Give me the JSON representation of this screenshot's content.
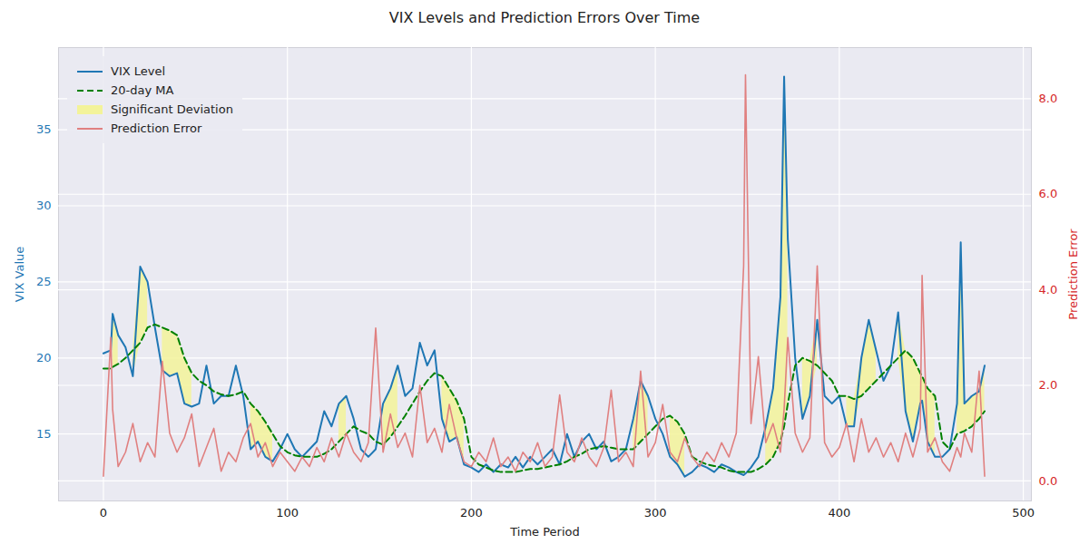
{
  "chart_data": {
    "type": "line",
    "title": "VIX Levels and Prediction Errors Over Time",
    "x_label": "Time Period",
    "y_label": "VIX Value",
    "y2_label": "Prediction Error",
    "x": [
      0,
      4,
      5,
      8,
      12,
      16,
      20,
      24,
      28,
      32,
      36,
      40,
      44,
      48,
      52,
      56,
      60,
      64,
      68,
      72,
      76,
      80,
      84,
      88,
      92,
      96,
      100,
      104,
      108,
      112,
      116,
      120,
      124,
      128,
      132,
      136,
      140,
      144,
      148,
      152,
      156,
      160,
      164,
      168,
      172,
      176,
      180,
      184,
      188,
      192,
      196,
      200,
      204,
      208,
      212,
      216,
      220,
      224,
      228,
      232,
      236,
      240,
      244,
      248,
      252,
      256,
      260,
      264,
      268,
      272,
      276,
      280,
      284,
      288,
      292,
      296,
      300,
      304,
      308,
      312,
      316,
      320,
      324,
      328,
      332,
      336,
      340,
      344,
      348,
      349,
      352,
      356,
      360,
      364,
      368,
      370,
      372,
      376,
      380,
      384,
      388,
      392,
      396,
      400,
      404,
      408,
      412,
      416,
      420,
      424,
      428,
      432,
      436,
      440,
      444,
      445,
      448,
      452,
      456,
      460,
      464,
      466,
      468,
      472,
      476,
      479
    ],
    "series": [
      {
        "name": "VIX Level",
        "color": "#1f77b4",
        "line_style": "solid",
        "values": [
          20.3,
          20.5,
          22.9,
          21.5,
          20.7,
          18.8,
          26.0,
          25.0,
          22.0,
          19.2,
          18.8,
          19.0,
          17.0,
          16.8,
          17.0,
          19.5,
          17.0,
          17.5,
          17.5,
          19.5,
          17.5,
          14.0,
          14.5,
          13.5,
          13.2,
          14.0,
          15.0,
          14.0,
          13.5,
          14.0,
          14.5,
          16.5,
          15.5,
          17.0,
          17.5,
          16.0,
          14.0,
          13.5,
          14.0,
          17.0,
          18.0,
          19.5,
          17.5,
          18.0,
          21.0,
          19.5,
          20.5,
          16.0,
          14.5,
          14.8,
          13.0,
          12.8,
          12.5,
          13.0,
          12.5,
          13.0,
          12.8,
          13.5,
          12.8,
          13.5,
          13.0,
          13.5,
          14.0,
          13.0,
          15.0,
          13.5,
          14.5,
          15.0,
          14.0,
          14.5,
          13.2,
          13.5,
          14.0,
          16.0,
          18.5,
          17.5,
          16.0,
          15.0,
          13.5,
          13.0,
          12.2,
          12.5,
          13.0,
          12.8,
          12.5,
          13.0,
          12.8,
          12.5,
          12.3,
          12.4,
          12.8,
          13.5,
          15.5,
          18.0,
          24.0,
          38.5,
          27.8,
          20.0,
          16.0,
          17.5,
          22.5,
          17.5,
          17.0,
          17.5,
          15.5,
          15.5,
          20.0,
          22.5,
          20.5,
          18.5,
          19.5,
          23.0,
          16.5,
          14.5,
          17.0,
          17.2,
          14.5,
          13.5,
          13.5,
          14.0,
          17.0,
          27.6,
          17.0,
          17.5,
          17.8,
          19.5
        ]
      },
      {
        "name": "20-day MA",
        "color": "green",
        "line_style": "dashed",
        "values": [
          19.3,
          19.3,
          19.4,
          19.6,
          20.0,
          20.5,
          21.0,
          22.0,
          22.2,
          22.0,
          21.8,
          21.5,
          20.0,
          19.0,
          18.5,
          18.2,
          17.8,
          17.6,
          17.5,
          17.6,
          17.8,
          17.0,
          16.5,
          15.8,
          15.0,
          14.2,
          13.8,
          13.6,
          13.5,
          13.5,
          13.5,
          13.7,
          14.0,
          14.5,
          15.0,
          15.5,
          15.2,
          15.0,
          14.5,
          14.3,
          14.8,
          15.5,
          16.2,
          17.0,
          17.8,
          18.5,
          19.0,
          18.8,
          18.0,
          17.2,
          16.0,
          13.5,
          13.0,
          12.8,
          12.6,
          12.5,
          12.5,
          12.5,
          12.6,
          12.7,
          12.7,
          12.8,
          12.9,
          13.0,
          13.2,
          13.5,
          13.7,
          14.0,
          14.1,
          14.2,
          14.1,
          14.0,
          14.0,
          14.0,
          14.5,
          15.0,
          15.5,
          16.0,
          16.2,
          15.8,
          15.0,
          13.5,
          13.2,
          13.0,
          12.9,
          12.8,
          12.6,
          12.5,
          12.5,
          12.5,
          12.5,
          12.7,
          13.0,
          13.5,
          14.5,
          15.5,
          17.0,
          19.5,
          20.0,
          19.8,
          19.5,
          19.0,
          18.5,
          17.5,
          17.5,
          17.3,
          17.5,
          18.0,
          18.5,
          19.0,
          19.5,
          20.0,
          20.5,
          20.0,
          19.0,
          18.8,
          18.0,
          17.5,
          14.5,
          14.0,
          15.0,
          15.1,
          15.2,
          15.5,
          16.0,
          16.5
        ]
      },
      {
        "name": "Significant Deviation",
        "type": "area",
        "color": "#f3f39a",
        "between": [
          "VIX Level",
          "20-day MA"
        ],
        "threshold": 1.5
      },
      {
        "name": "Prediction Error",
        "color": "#e08080",
        "axis": "y2",
        "line_style": "solid",
        "values": [
          0.1,
          3.0,
          1.5,
          0.3,
          0.6,
          1.2,
          0.4,
          0.8,
          0.5,
          2.5,
          1.0,
          0.6,
          0.9,
          1.4,
          0.3,
          0.7,
          1.1,
          0.2,
          0.6,
          0.4,
          0.9,
          1.2,
          0.5,
          0.8,
          0.3,
          0.6,
          0.4,
          0.2,
          0.5,
          0.3,
          0.7,
          0.4,
          0.9,
          0.5,
          1.0,
          0.6,
          0.4,
          0.8,
          3.2,
          0.6,
          1.4,
          0.7,
          1.0,
          0.5,
          2.0,
          0.8,
          1.1,
          0.6,
          1.6,
          0.9,
          0.4,
          0.3,
          0.6,
          0.4,
          0.9,
          0.3,
          0.5,
          0.2,
          0.6,
          0.4,
          0.8,
          0.3,
          0.5,
          1.8,
          0.6,
          0.4,
          0.9,
          0.5,
          0.3,
          0.7,
          1.9,
          0.4,
          0.6,
          0.3,
          2.3,
          0.5,
          0.8,
          1.6,
          0.6,
          0.4,
          0.9,
          0.5,
          0.3,
          0.6,
          0.4,
          0.8,
          0.5,
          1.0,
          4.5,
          8.5,
          1.2,
          2.6,
          0.8,
          1.2,
          0.6,
          1.5,
          3.0,
          1.0,
          0.6,
          0.9,
          4.5,
          0.8,
          0.5,
          0.7,
          1.2,
          0.4,
          1.3,
          0.6,
          0.9,
          0.5,
          0.8,
          0.4,
          1.0,
          0.5,
          1.1,
          4.3,
          0.6,
          0.9,
          0.4,
          0.2,
          0.7,
          0.5,
          1.0,
          0.6,
          2.3,
          0.1
        ]
      }
    ],
    "xlim": [
      -24.4,
      504.4
    ],
    "xticks": [
      0,
      100,
      200,
      300,
      400,
      500
    ],
    "ylim": [
      10.6,
      40.4
    ],
    "yticks": [
      15,
      20,
      25,
      30,
      35
    ],
    "y2lim": [
      -0.42,
      9.07
    ],
    "y2ticks": [
      0,
      2,
      4,
      6,
      8
    ],
    "grid": true,
    "legend": "upper left"
  }
}
